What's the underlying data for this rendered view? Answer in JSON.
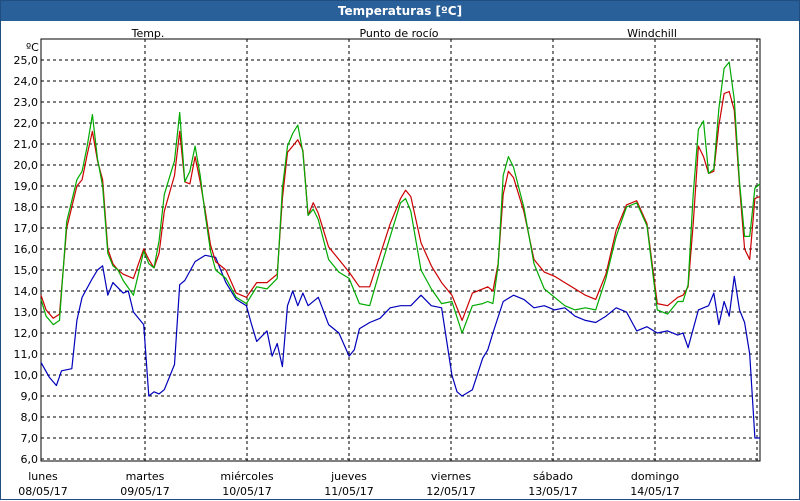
{
  "window": {
    "title": "Temperaturas [ºC]"
  },
  "chart_data": {
    "type": "line",
    "title": "Temperaturas [ºC]",
    "ylabel": "ºC",
    "ylim": [
      6.0,
      25.0
    ],
    "ytick_labels": [
      "6,0",
      "7,0",
      "8,0",
      "9,0",
      "10,0",
      "11,0",
      "12,0",
      "13,0",
      "14,0",
      "15,0",
      "16,0",
      "17,0",
      "18,0",
      "19,0",
      "20,0",
      "21,0",
      "22,0",
      "23,0",
      "24,0",
      "25,0"
    ],
    "grid": true,
    "legend_placement": "top",
    "x_labels": [
      {
        "day": "lunes",
        "date": "08/05/17"
      },
      {
        "day": "martes",
        "date": "09/05/17"
      },
      {
        "day": "miércoles",
        "date": "10/05/17"
      },
      {
        "day": "jueves",
        "date": "11/05/17"
      },
      {
        "day": "viernes",
        "date": "12/05/17"
      },
      {
        "day": "sábado",
        "date": "13/05/17"
      },
      {
        "day": "domingo",
        "date": "14/05/17"
      }
    ],
    "x_unit": "day",
    "xlim": [
      0,
      7
    ],
    "series": [
      {
        "name": "Temp.",
        "color": "#cc0000",
        "x": [
          0,
          0.05,
          0.12,
          0.18,
          0.25,
          0.35,
          0.4,
          0.45,
          0.5,
          0.55,
          0.6,
          0.65,
          0.7,
          0.75,
          0.8,
          0.9,
          1.0,
          1.05,
          1.1,
          1.15,
          1.2,
          1.3,
          1.35,
          1.4,
          1.45,
          1.5,
          1.55,
          1.6,
          1.65,
          1.7,
          1.8,
          1.9,
          2.0,
          2.1,
          2.2,
          2.3,
          2.35,
          2.4,
          2.45,
          2.5,
          2.55,
          2.6,
          2.65,
          2.7,
          2.8,
          2.9,
          3.0,
          3.1,
          3.2,
          3.3,
          3.4,
          3.5,
          3.55,
          3.6,
          3.7,
          3.8,
          3.9,
          4.0,
          4.1,
          4.2,
          4.3,
          4.35,
          4.4,
          4.45,
          4.5,
          4.55,
          4.6,
          4.7,
          4.8,
          4.9,
          5.0,
          5.1,
          5.2,
          5.3,
          5.4,
          5.5,
          5.6,
          5.7,
          5.8,
          5.9,
          6.0,
          6.1,
          6.2,
          6.25,
          6.3,
          6.35,
          6.4,
          6.45,
          6.5,
          6.55,
          6.6,
          6.65,
          6.7,
          6.75,
          6.8,
          6.85,
          6.9,
          6.95,
          7.0
        ],
        "values": [
          13.8,
          13.1,
          12.7,
          12.9,
          17.0,
          19.0,
          19.3,
          20.5,
          21.6,
          20.2,
          19.3,
          16.0,
          15.3,
          15.0,
          14.8,
          14.6,
          16.0,
          15.5,
          15.1,
          15.8,
          17.8,
          19.5,
          21.6,
          19.2,
          19.1,
          20.4,
          19.2,
          17.8,
          16.2,
          15.4,
          15.0,
          13.9,
          13.7,
          14.4,
          14.4,
          14.8,
          18.4,
          20.6,
          20.9,
          21.2,
          20.7,
          17.6,
          18.2,
          17.7,
          16.1,
          15.5,
          14.9,
          14.2,
          14.2,
          15.7,
          17.2,
          18.4,
          18.8,
          18.5,
          16.3,
          15.2,
          14.4,
          13.8,
          12.6,
          13.9,
          14.1,
          14.2,
          14.0,
          15.3,
          18.6,
          19.7,
          19.4,
          17.8,
          15.5,
          14.9,
          14.7,
          14.4,
          14.1,
          13.8,
          13.6,
          14.8,
          16.9,
          18.1,
          18.3,
          17.2,
          13.4,
          13.3,
          13.7,
          13.8,
          14.2,
          17.2,
          20.9,
          20.4,
          19.6,
          19.7,
          21.9,
          23.4,
          23.5,
          22.6,
          19.0,
          16.0,
          15.5,
          18.4,
          18.5
        ]
      },
      {
        "name": "Punto de rocío",
        "color": "#0000bb",
        "x": [
          0,
          0.08,
          0.15,
          0.2,
          0.3,
          0.35,
          0.4,
          0.5,
          0.55,
          0.6,
          0.65,
          0.7,
          0.8,
          0.85,
          0.9,
          1.0,
          1.02,
          1.05,
          1.1,
          1.15,
          1.2,
          1.3,
          1.35,
          1.4,
          1.5,
          1.6,
          1.7,
          1.8,
          1.9,
          2.0,
          2.05,
          2.1,
          2.2,
          2.25,
          2.3,
          2.35,
          2.4,
          2.45,
          2.5,
          2.55,
          2.6,
          2.7,
          2.8,
          2.9,
          3.0,
          3.05,
          3.1,
          3.2,
          3.3,
          3.4,
          3.5,
          3.6,
          3.7,
          3.8,
          3.9,
          4.0,
          4.05,
          4.1,
          4.2,
          4.3,
          4.35,
          4.4,
          4.5,
          4.6,
          4.7,
          4.8,
          4.9,
          5.0,
          5.1,
          5.2,
          5.3,
          5.4,
          5.5,
          5.6,
          5.7,
          5.8,
          5.9,
          6.0,
          6.1,
          6.2,
          6.25,
          6.3,
          6.4,
          6.5,
          6.55,
          6.6,
          6.65,
          6.7,
          6.75,
          6.8,
          6.85,
          6.9,
          6.95,
          7.0
        ],
        "values": [
          10.6,
          9.9,
          9.5,
          10.2,
          10.3,
          12.6,
          13.7,
          14.6,
          15.0,
          15.2,
          13.8,
          14.4,
          13.9,
          14.0,
          13.0,
          12.4,
          11.0,
          9.0,
          9.2,
          9.1,
          9.3,
          10.5,
          14.3,
          14.5,
          15.4,
          15.7,
          15.6,
          14.4,
          13.6,
          13.3,
          12.4,
          11.6,
          12.1,
          10.9,
          11.5,
          10.4,
          13.3,
          14.0,
          13.3,
          13.9,
          13.3,
          13.7,
          12.4,
          12.0,
          10.9,
          11.2,
          12.2,
          12.5,
          12.7,
          13.2,
          13.3,
          13.3,
          13.8,
          13.3,
          13.2,
          10.0,
          9.2,
          9.0,
          9.3,
          10.8,
          11.2,
          12.0,
          13.5,
          13.8,
          13.6,
          13.2,
          13.3,
          13.1,
          13.2,
          12.8,
          12.6,
          12.5,
          12.8,
          13.2,
          13.0,
          12.1,
          12.3,
          12.0,
          12.1,
          11.9,
          12.0,
          11.3,
          13.1,
          13.3,
          13.9,
          12.4,
          13.5,
          12.8,
          14.7,
          13.1,
          12.5,
          11.0,
          7.0,
          7.0
        ]
      },
      {
        "name": "Windchill",
        "color": "#00aa00",
        "x": [
          0,
          0.05,
          0.12,
          0.18,
          0.25,
          0.35,
          0.4,
          0.45,
          0.5,
          0.55,
          0.6,
          0.65,
          0.7,
          0.75,
          0.8,
          0.9,
          1.0,
          1.05,
          1.1,
          1.15,
          1.2,
          1.3,
          1.35,
          1.4,
          1.45,
          1.5,
          1.55,
          1.6,
          1.65,
          1.7,
          1.8,
          1.9,
          2.0,
          2.1,
          2.2,
          2.3,
          2.35,
          2.4,
          2.45,
          2.5,
          2.55,
          2.6,
          2.65,
          2.7,
          2.8,
          2.9,
          3.0,
          3.1,
          3.2,
          3.3,
          3.4,
          3.5,
          3.55,
          3.6,
          3.7,
          3.8,
          3.9,
          4.0,
          4.1,
          4.2,
          4.3,
          4.35,
          4.4,
          4.45,
          4.5,
          4.55,
          4.6,
          4.7,
          4.8,
          4.9,
          5.0,
          5.1,
          5.2,
          5.3,
          5.4,
          5.5,
          5.6,
          5.7,
          5.8,
          5.9,
          6.0,
          6.1,
          6.2,
          6.25,
          6.3,
          6.35,
          6.4,
          6.45,
          6.5,
          6.55,
          6.6,
          6.65,
          6.7,
          6.75,
          6.8,
          6.85,
          6.9,
          6.95,
          7.0
        ],
        "values": [
          13.6,
          12.8,
          12.4,
          12.6,
          17.3,
          19.3,
          19.7,
          20.9,
          22.4,
          20.3,
          19.0,
          15.8,
          15.2,
          15.0,
          14.5,
          13.8,
          15.9,
          15.3,
          15.1,
          16.4,
          18.6,
          20.2,
          22.5,
          19.2,
          19.7,
          20.9,
          19.5,
          17.6,
          15.9,
          15.0,
          14.6,
          13.7,
          13.4,
          14.2,
          14.1,
          14.6,
          18.9,
          20.9,
          21.5,
          21.9,
          20.6,
          17.6,
          17.9,
          17.4,
          15.5,
          14.9,
          14.6,
          13.4,
          13.3,
          15.0,
          16.6,
          18.2,
          18.4,
          17.8,
          15.0,
          14.1,
          13.4,
          13.5,
          12.0,
          13.3,
          13.4,
          13.5,
          13.4,
          15.2,
          19.5,
          20.4,
          19.9,
          18.0,
          15.3,
          14.1,
          13.7,
          13.3,
          13.1,
          13.2,
          13.1,
          14.6,
          16.6,
          18.0,
          18.2,
          17.1,
          13.1,
          12.9,
          13.5,
          13.5,
          14.3,
          18.6,
          21.7,
          22.1,
          19.6,
          19.8,
          22.7,
          24.6,
          24.9,
          23.1,
          19.2,
          16.6,
          16.6,
          18.9,
          19.1
        ]
      }
    ]
  }
}
